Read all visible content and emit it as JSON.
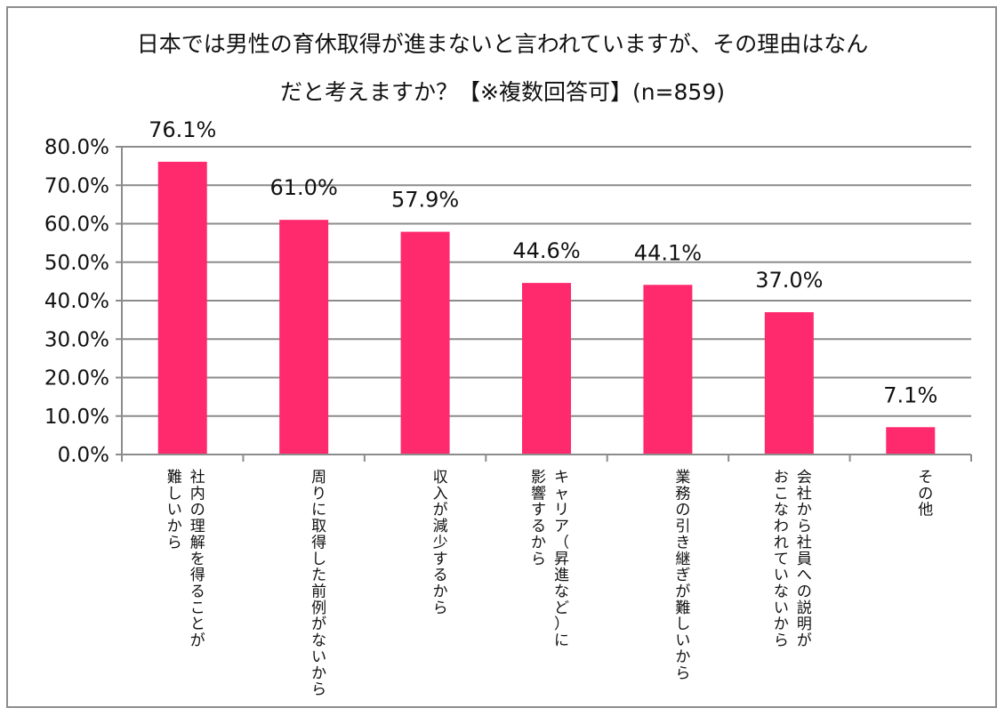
{
  "chart_data": {
    "type": "bar",
    "title": [
      "日本では男性の育休取得が進まないと言われていますが、その理由はなん",
      "だと考えますか？【※複数回答可】(n=859)"
    ],
    "xlabel": "",
    "ylabel": "",
    "ylim": [
      0,
      80
    ],
    "y_ticks": [
      0,
      10,
      20,
      30,
      40,
      50,
      60,
      70,
      80
    ],
    "y_tick_labels": [
      "0.0%",
      "10.0%",
      "20.0%",
      "30.0%",
      "40.0%",
      "50.0%",
      "60.0%",
      "70.0%",
      "80.0%"
    ],
    "grid": true,
    "legend": "none",
    "bar_color": "#FF2A6E",
    "categories": [
      [
        "社内の理解を得ることが",
        "難しいから"
      ],
      [
        "周りに取得した前例がないから"
      ],
      [
        "収入が減少するから"
      ],
      [
        "キャリア（昇進など）に",
        "影響するから"
      ],
      [
        "業務の引き継ぎが難しいから"
      ],
      [
        "会社から社員への説明が",
        "おこなわれていないから"
      ],
      [
        "その他"
      ]
    ],
    "values": [
      76.1,
      61.0,
      57.9,
      44.6,
      44.1,
      37.0,
      7.1
    ],
    "data_labels": [
      "76.1%",
      "61.0%",
      "57.9%",
      "44.6%",
      "44.1%",
      "37.0%",
      "7.1%"
    ]
  }
}
